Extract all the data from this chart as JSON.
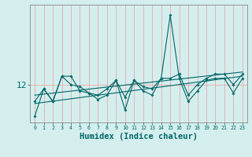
{
  "title": "",
  "xlabel": "Humidex (Indice chaleur)",
  "ylabel": "",
  "bg_color": "#d4eeee",
  "line_color": "#006666",
  "grid_color": "#e8a8a8",
  "axis_color": "#888888",
  "text_color": "#006666",
  "ytick_labels": [
    "12"
  ],
  "ytick_vals": [
    12
  ],
  "ylim": [
    10.2,
    15.8
  ],
  "xlim": [
    -0.5,
    23.5
  ],
  "series1": [
    10.5,
    11.8,
    11.2,
    12.4,
    12.4,
    11.7,
    11.6,
    11.3,
    11.5,
    12.2,
    10.8,
    12.2,
    11.7,
    11.5,
    12.3,
    15.3,
    12.3,
    11.2,
    11.7,
    12.2,
    12.3,
    12.3,
    11.6,
    12.3
  ],
  "series2": [
    11.2,
    11.8,
    11.2,
    12.4,
    12.0,
    11.9,
    11.6,
    11.5,
    11.8,
    12.2,
    11.4,
    12.2,
    11.9,
    11.8,
    12.3,
    12.3,
    12.5,
    11.5,
    12.0,
    12.3,
    12.5,
    12.5,
    12.0,
    12.5
  ],
  "trend1_x": [
    0,
    23
  ],
  "trend1_y": [
    11.1,
    12.4
  ],
  "trend2_x": [
    0,
    23
  ],
  "trend2_y": [
    11.5,
    12.6
  ],
  "marker": "D",
  "marker_size": 2,
  "line_width": 0.8
}
